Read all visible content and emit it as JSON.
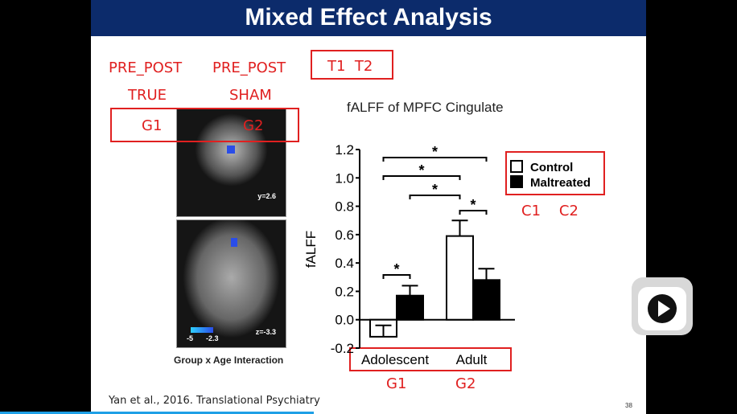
{
  "slide": {
    "title": "Mixed Effect Analysis",
    "citation": "Yan et al., 2016. Translational Psychiatry",
    "page_number": "38",
    "annotations": {
      "pre_post_1": "PRE_POST",
      "true": "TRUE",
      "pre_post_2": "PRE_POST",
      "sham": "SHAM",
      "t1t2": "T1  T2",
      "g1_top": "G1",
      "g2_top": "G2",
      "c1c2": "C1    C2",
      "g1_bottom": "G1",
      "g2_bottom": "G2"
    },
    "brain": {
      "coronal_label": "y=2.6",
      "axial_label": "z=-3.3",
      "scale_min": "-5",
      "scale_max": "-2.3",
      "caption": "Group x Age Interaction"
    }
  },
  "chart_data": {
    "type": "bar",
    "title": "fALFF of MPFC Cingulate",
    "xlabel": "",
    "ylabel": "fALFF",
    "ylim": [
      -0.2,
      1.2
    ],
    "yticks": [
      "-0.2",
      "0.0",
      "0.2",
      "0.4",
      "0.6",
      "0.8",
      "1.0",
      "1.2"
    ],
    "categories": [
      "Adolescent",
      "Adult"
    ],
    "series": [
      {
        "name": "Control",
        "values": [
          -0.12,
          0.59
        ],
        "error": [
          0.08,
          0.11
        ],
        "color": "#ffffff"
      },
      {
        "name": "Maltreated",
        "values": [
          0.17,
          0.28
        ],
        "error": [
          0.07,
          0.08
        ],
        "color": "#000000"
      }
    ],
    "significance": [
      {
        "label": "*",
        "pair": "Adolescent Control vs Adolescent Maltreated"
      },
      {
        "label": "*",
        "pair": "Adult Control vs Adult Maltreated"
      },
      {
        "label": "*",
        "pair": "Adolescent Maltreated vs Adult Control"
      },
      {
        "label": "*",
        "pair": "Adolescent Control vs Adult Control"
      },
      {
        "label": "*",
        "pair": "Adolescent Control vs Adult Maltreated"
      }
    ],
    "legend": "top-right"
  },
  "player": {
    "accent": "#1ea0e6",
    "progress": 0.43
  }
}
